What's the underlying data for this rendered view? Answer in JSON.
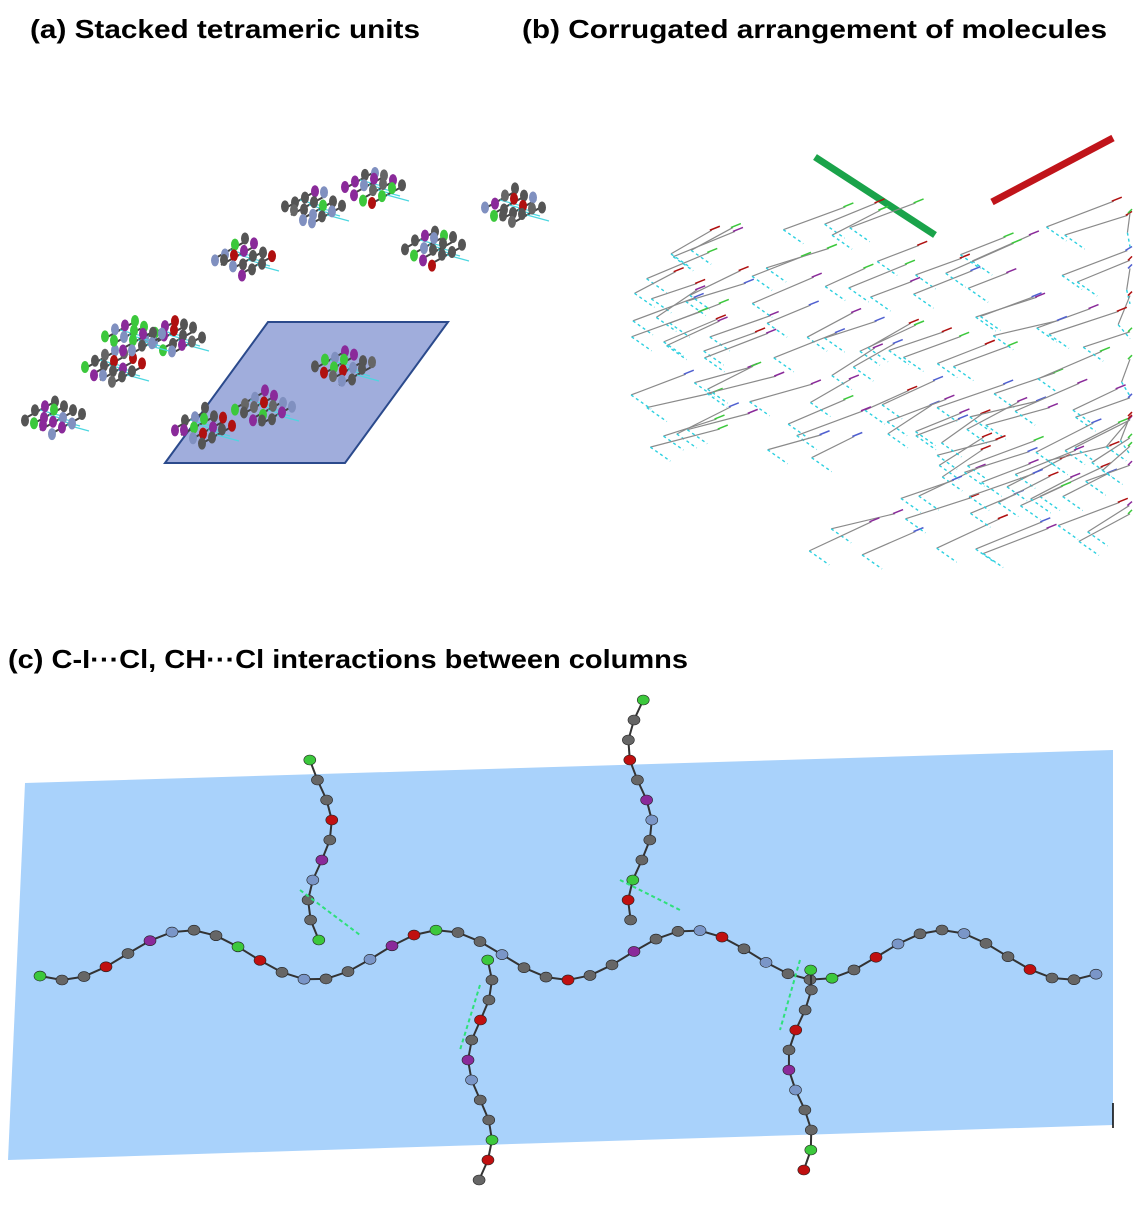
{
  "panels": [
    {
      "title": "(a) Stacked tetrameric units"
    },
    {
      "title": "(b) Corrugated arrangement of molecules"
    },
    {
      "title": "(c) C-I···Cl, CH···Cl interactions between columns"
    }
  ]
}
